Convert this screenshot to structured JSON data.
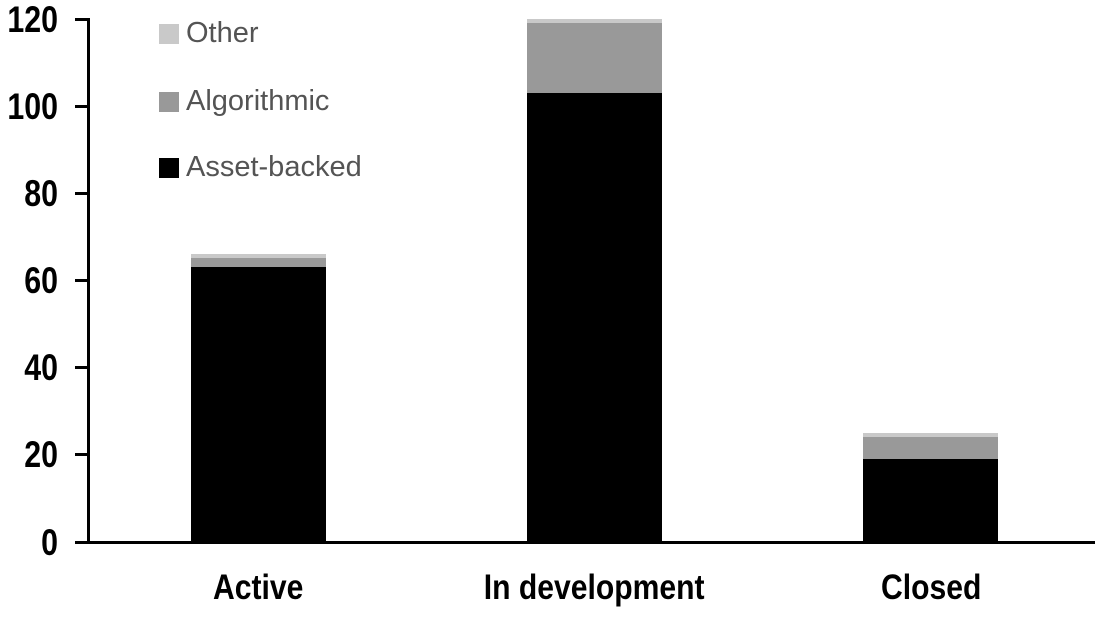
{
  "chart_data": {
    "type": "bar",
    "stacked": true,
    "title": "",
    "xlabel": "",
    "ylabel": "",
    "categories": [
      "Active",
      "In development",
      "Closed"
    ],
    "series": [
      {
        "name": "Asset-backed",
        "color": "#000000",
        "values": [
          63,
          103,
          19
        ]
      },
      {
        "name": "Algorithmic",
        "color": "#999999",
        "values": [
          2,
          16,
          5
        ]
      },
      {
        "name": "Other",
        "color": "#c9c9c9",
        "values": [
          1,
          1,
          1
        ]
      }
    ],
    "ylim": [
      0,
      120
    ],
    "yticks": [
      0,
      20,
      40,
      60,
      80,
      100,
      120
    ],
    "grid": false,
    "legend": {
      "position": "top-left",
      "entries": [
        "Other",
        "Algorithmic",
        "Asset-backed"
      ],
      "text_color": "#545454"
    },
    "axis_color": "#000000",
    "background_color": "#ffffff"
  }
}
